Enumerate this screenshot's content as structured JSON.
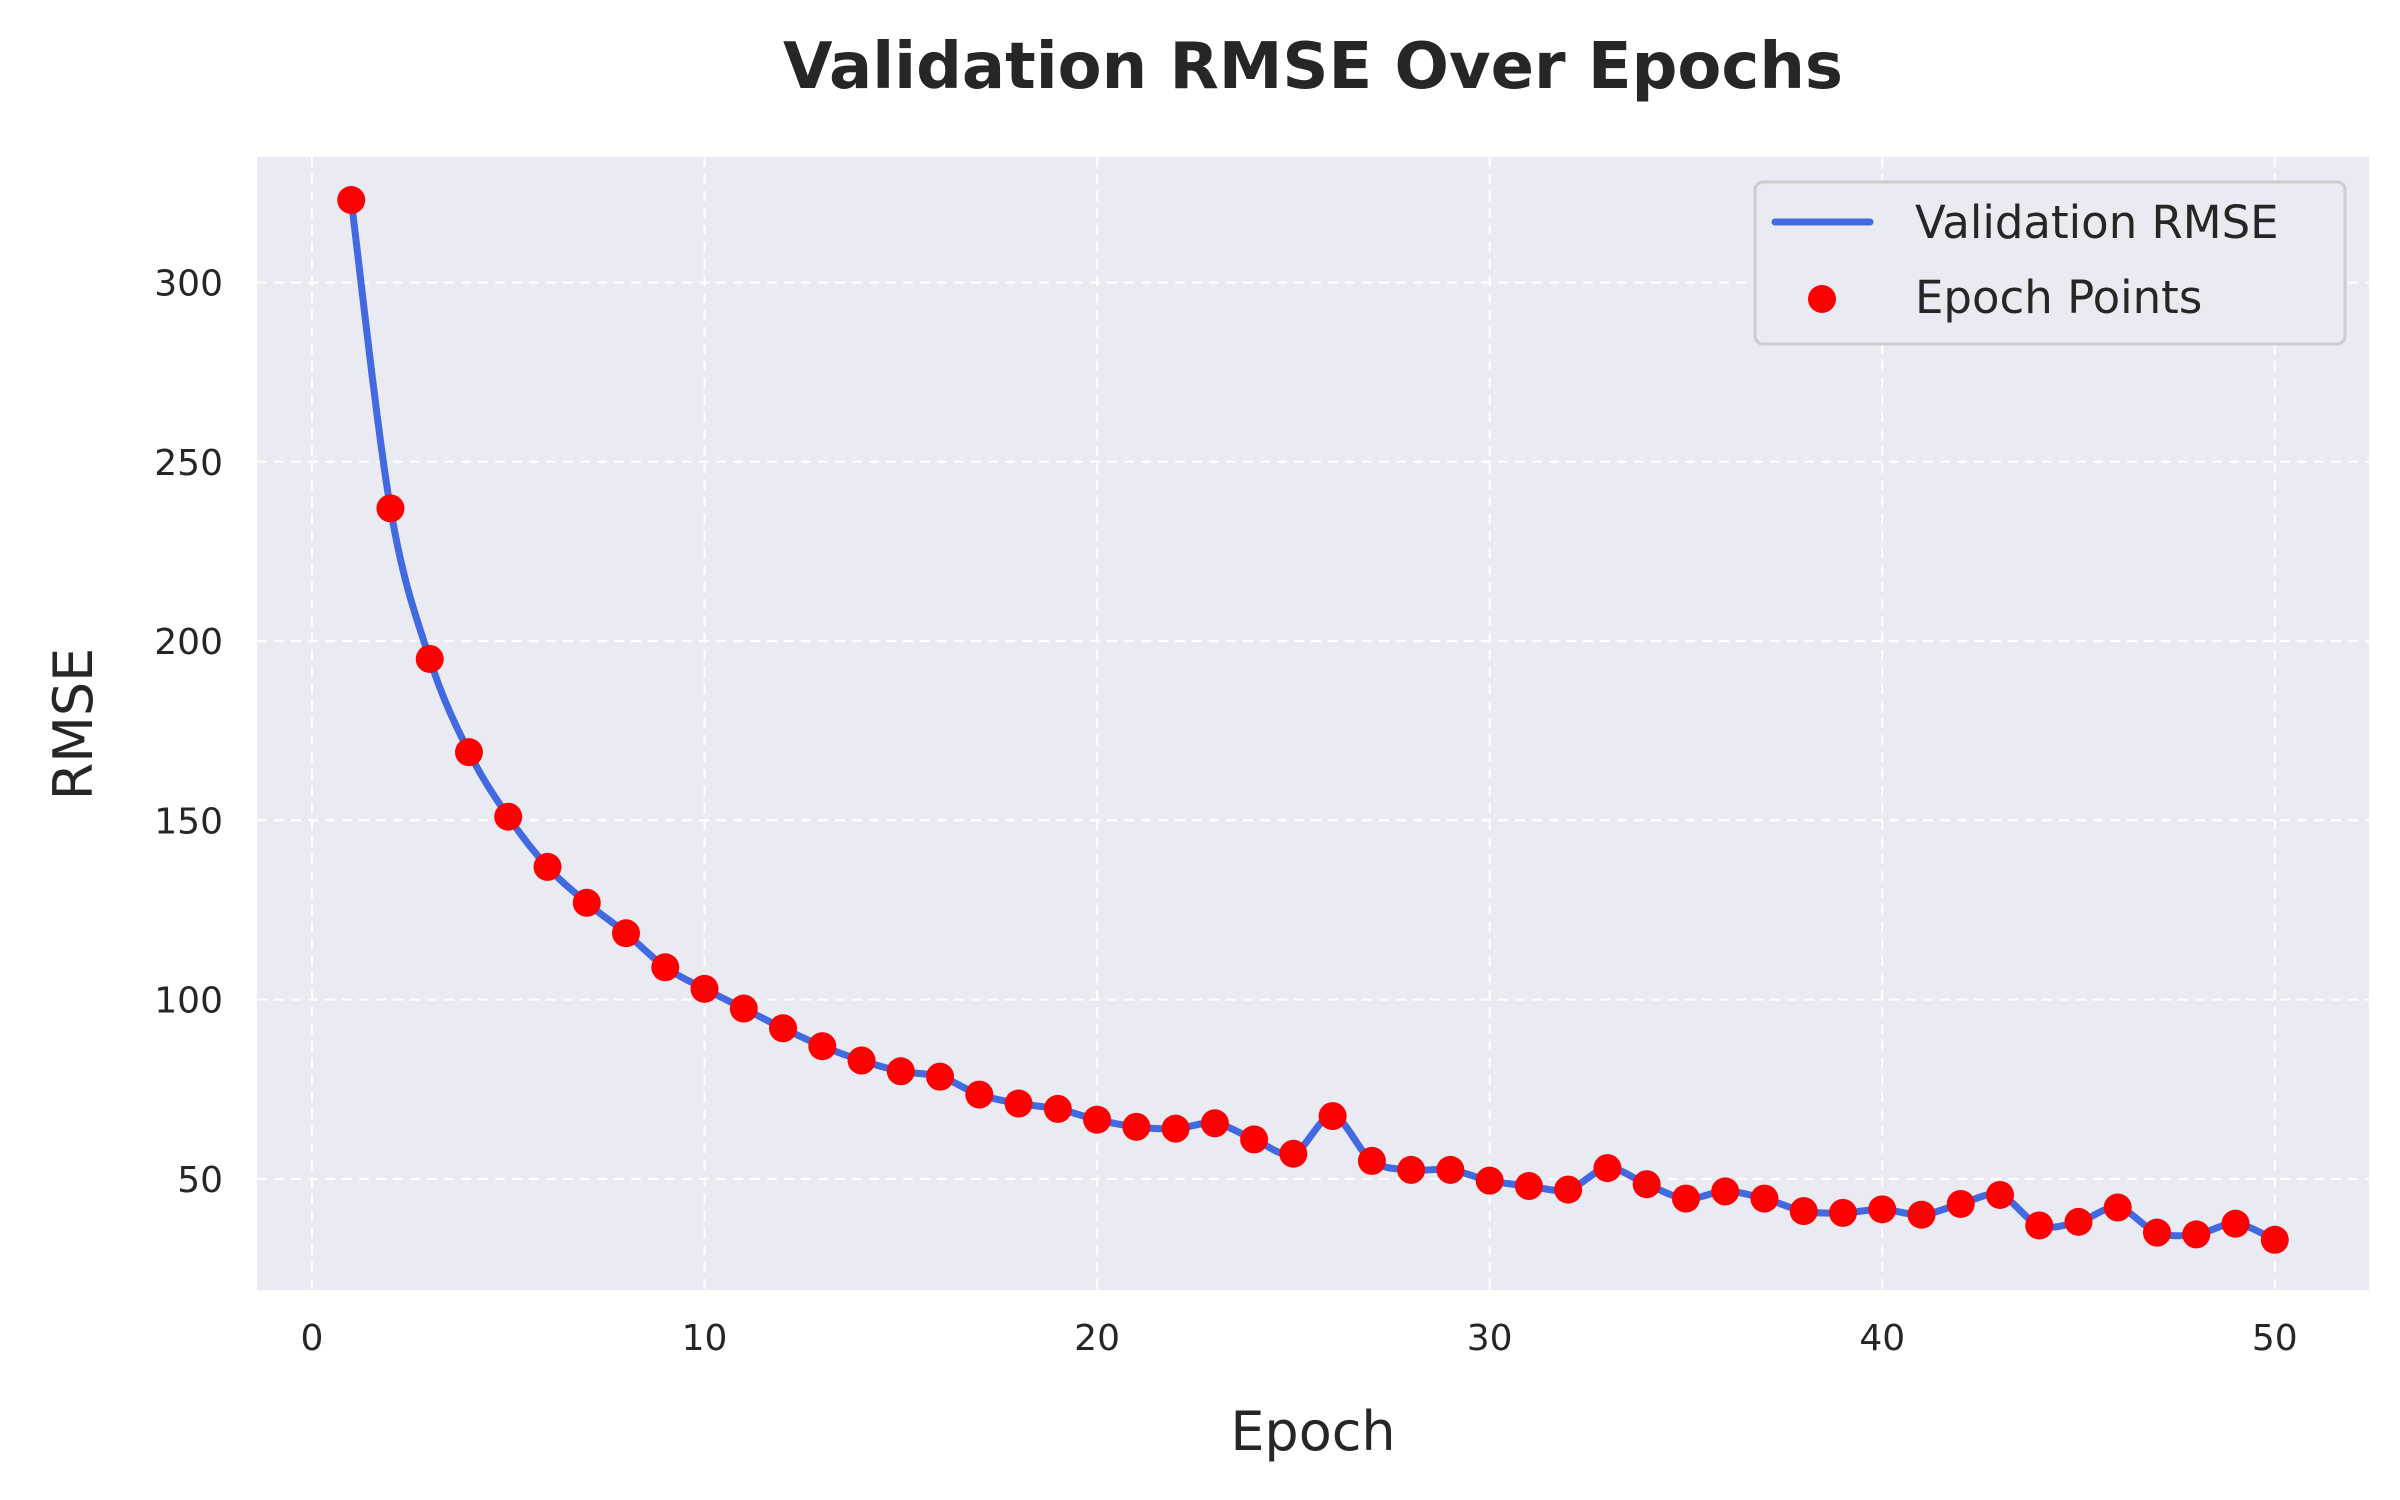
{
  "chart_data": {
    "type": "line",
    "title": "Validation RMSE Over Epochs",
    "xlabel": "Epoch",
    "ylabel": "RMSE",
    "xlim": [
      -1.4,
      52.4
    ],
    "ylim": [
      19,
      335
    ],
    "x_ticks": [
      0,
      10,
      20,
      30,
      40,
      50
    ],
    "y_ticks": [
      50,
      100,
      150,
      200,
      250,
      300
    ],
    "grid": true,
    "grid_style": "dashed",
    "legend_position": "top-right",
    "series": [
      {
        "name": "Validation RMSE",
        "kind": "line",
        "color": "#4169e1",
        "x": [
          1,
          2,
          3,
          4,
          5,
          6,
          7,
          8,
          9,
          10,
          11,
          12,
          13,
          14,
          15,
          16,
          17,
          18,
          19,
          20,
          21,
          22,
          23,
          24,
          25,
          26,
          27,
          28,
          29,
          30,
          31,
          32,
          33,
          34,
          35,
          36,
          37,
          38,
          39,
          40,
          41,
          42,
          43,
          44,
          45,
          46,
          47,
          48,
          49,
          50
        ],
        "y": [
          323,
          237,
          195,
          169,
          151,
          137,
          127,
          118.5,
          109,
          103,
          97.5,
          92,
          87,
          83,
          80,
          78.5,
          73.5,
          71,
          69.5,
          66.5,
          64.5,
          64,
          65.5,
          61,
          57,
          67.5,
          55,
          52.5,
          52.5,
          49.5,
          48,
          47,
          53,
          48.5,
          44.5,
          46.5,
          44.5,
          41,
          40.5,
          41.5,
          40,
          43,
          45.5,
          37,
          38,
          42,
          35,
          34.5,
          37.5,
          33
        ]
      },
      {
        "name": "Epoch Points",
        "kind": "scatter",
        "color": "#ff0000",
        "x": [
          1,
          2,
          3,
          4,
          5,
          6,
          7,
          8,
          9,
          10,
          11,
          12,
          13,
          14,
          15,
          16,
          17,
          18,
          19,
          20,
          21,
          22,
          23,
          24,
          25,
          26,
          27,
          28,
          29,
          30,
          31,
          32,
          33,
          34,
          35,
          36,
          37,
          38,
          39,
          40,
          41,
          42,
          43,
          44,
          45,
          46,
          47,
          48,
          49,
          50
        ],
        "y": [
          323,
          237,
          195,
          169,
          151,
          137,
          127,
          118.5,
          109,
          103,
          97.5,
          92,
          87,
          83,
          80,
          78.5,
          73.5,
          71,
          69.5,
          66.5,
          64.5,
          64,
          65.5,
          61,
          57,
          67.5,
          55,
          52.5,
          52.5,
          49.5,
          48,
          47,
          53,
          48.5,
          44.5,
          46.5,
          44.5,
          41,
          40.5,
          41.5,
          40,
          43,
          45.5,
          37,
          38,
          42,
          35,
          34.5,
          37.5,
          33
        ]
      }
    ],
    "colors": {
      "plot_background": "#eaeaf2",
      "grid": "#ffffff",
      "text": "#262626",
      "legend_border": "#cccccc"
    }
  }
}
